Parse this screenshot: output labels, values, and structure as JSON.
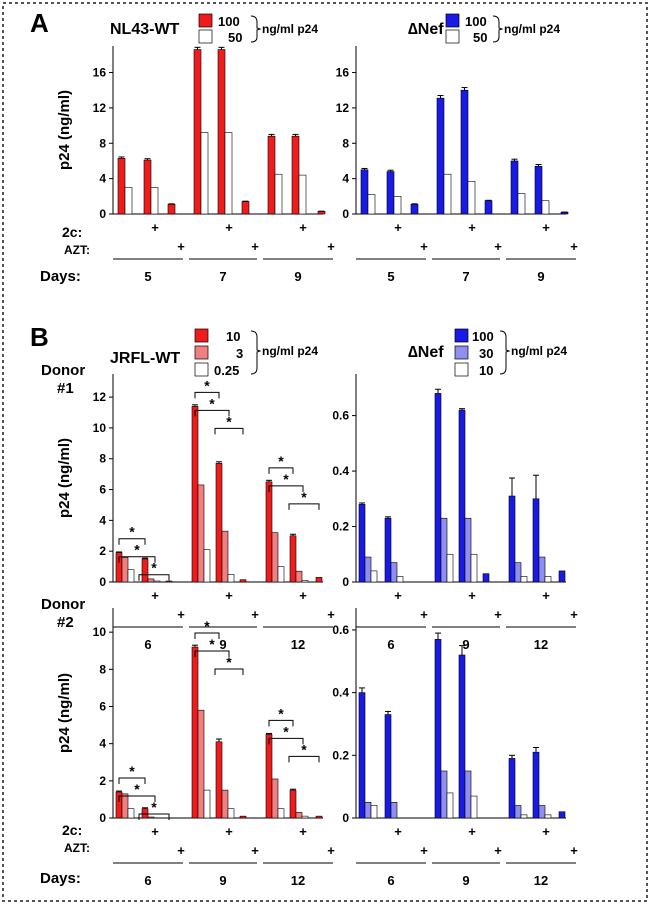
{
  "panel_a": {
    "letter": "A",
    "row_labels": {
      "c2": "2c:",
      "azt": "AZT:",
      "days": "Days:"
    },
    "left": {
      "name": "NL43-WT",
      "legend": [
        {
          "label": "100",
          "color": "#ee1c1c"
        },
        {
          "label": "50",
          "color": "#ffffff"
        }
      ],
      "legend_unit": "ng/ml p24"
    },
    "right": {
      "name": "∆Nef",
      "legend": [
        {
          "label": "100",
          "color": "#1a1ae6"
        },
        {
          "label": "50",
          "color": "#ffffff"
        }
      ],
      "legend_unit": "ng/ml p24"
    }
  },
  "panel_b": {
    "letter": "B",
    "row_labels": {
      "c2": "2c:",
      "azt": "AZT:",
      "days": "Days:"
    },
    "left": {
      "name": "JRFL-WT",
      "legend": [
        {
          "label": "10",
          "color": "#ee1c1c"
        },
        {
          "label": "3",
          "color": "#f08080"
        },
        {
          "label": "0.25",
          "color": "#ffffff"
        }
      ],
      "legend_unit": "ng/ml p24"
    },
    "right": {
      "name": "∆Nef",
      "legend": [
        {
          "label": "100",
          "color": "#1a1ae6"
        },
        {
          "label": "30",
          "color": "#8f8ff0"
        },
        {
          "label": "10",
          "color": "#ffffff"
        }
      ],
      "legend_unit": "ng/ml p24"
    },
    "donor1": "Donor\n#1",
    "donor2": "Donor\n#2"
  },
  "chart_data": [
    {
      "id": "A-left",
      "type": "bar",
      "ylabel": "p24 (ng/ml)",
      "ylim": [
        0,
        19
      ],
      "yticks": [
        0,
        4,
        8,
        12,
        16
      ],
      "days": [
        "5",
        "7",
        "9"
      ],
      "conditions": [
        {
          "c2": "",
          "azt": ""
        },
        {
          "c2": "+",
          "azt": ""
        },
        {
          "c2": "",
          "azt": "+"
        }
      ],
      "series": [
        {
          "name": "100",
          "color": "#ee1c1c",
          "values": [
            6.3,
            6.1,
            1.1,
            18.6,
            18.6,
            1.4,
            8.8,
            8.8,
            0.3
          ]
        },
        {
          "name": "50",
          "color": "#ffffff",
          "values": [
            3.0,
            3.0,
            0,
            9.2,
            9.2,
            0,
            4.5,
            4.4,
            0
          ]
        }
      ],
      "errors": [
        0.15,
        0.15,
        0.05,
        0.25,
        0.25,
        0.05,
        0.2,
        0.2,
        0.02
      ]
    },
    {
      "id": "A-right",
      "type": "bar",
      "ylabel": "",
      "ylim": [
        0,
        19
      ],
      "yticks": [
        0,
        4,
        8,
        12,
        16
      ],
      "days": [
        "5",
        "7",
        "9"
      ],
      "conditions": [
        {
          "c2": "",
          "azt": ""
        },
        {
          "c2": "+",
          "azt": ""
        },
        {
          "c2": "",
          "azt": "+"
        }
      ],
      "series": [
        {
          "name": "100",
          "color": "#1a1ae6",
          "values": [
            5.0,
            4.8,
            1.1,
            13.1,
            14.0,
            1.5,
            6.0,
            5.4,
            0.2
          ]
        },
        {
          "name": "50",
          "color": "#ffffff",
          "values": [
            2.2,
            2.0,
            0,
            4.5,
            3.7,
            0,
            2.3,
            1.5,
            0
          ]
        }
      ],
      "errors": [
        0.15,
        0.15,
        0.05,
        0.3,
        0.3,
        0.05,
        0.2,
        0.2,
        0.02
      ]
    },
    {
      "id": "B-left-donor1",
      "type": "bar",
      "ylabel": "p24 (ng/ml)",
      "ylim": [
        0,
        13.5
      ],
      "yticks": [
        0,
        2,
        4,
        6,
        8,
        10,
        12
      ],
      "days": [
        "6",
        "9",
        "12"
      ],
      "conditions": [
        {
          "c2": "",
          "azt": ""
        },
        {
          "c2": "+",
          "azt": ""
        },
        {
          "c2": "",
          "azt": "+"
        }
      ],
      "series": [
        {
          "name": "10",
          "color": "#ee1c1c",
          "values": [
            1.9,
            1.5,
            0.05,
            11.4,
            7.7,
            0.15,
            6.5,
            3.0,
            0.3
          ]
        },
        {
          "name": "3",
          "color": "#f08080",
          "values": [
            1.6,
            0.2,
            0,
            6.3,
            3.3,
            0,
            3.2,
            0.7,
            0
          ]
        },
        {
          "name": "0.25",
          "color": "#ffffff",
          "values": [
            0.8,
            0.05,
            0,
            2.1,
            0.5,
            0,
            1.0,
            0.1,
            0
          ]
        }
      ],
      "errors": [
        0.05,
        0.05,
        0,
        0.1,
        0.1,
        0,
        0.1,
        0.1,
        0
      ],
      "significance": [
        "*",
        "*",
        "*",
        "*",
        "*",
        "*",
        "*",
        "*",
        "*"
      ]
    },
    {
      "id": "B-right-donor1",
      "type": "bar",
      "ylabel": "",
      "ylim": [
        0,
        0.75
      ],
      "yticks": [
        0,
        0.2,
        0.4,
        0.6
      ],
      "days": [
        "6",
        "9",
        "12"
      ],
      "conditions": [
        {
          "c2": "",
          "azt": ""
        },
        {
          "c2": "+",
          "azt": ""
        },
        {
          "c2": "",
          "azt": "+"
        }
      ],
      "series": [
        {
          "name": "100",
          "color": "#1a1ae6",
          "values": [
            0.28,
            0.23,
            0,
            0.68,
            0.62,
            0.03,
            0.31,
            0.3,
            0.04
          ]
        },
        {
          "name": "30",
          "color": "#8f8ff0",
          "values": [
            0.09,
            0.07,
            0,
            0.23,
            0.23,
            0,
            0.07,
            0.09,
            0
          ]
        },
        {
          "name": "10",
          "color": "#ffffff",
          "values": [
            0.04,
            0.02,
            0,
            0.1,
            0.1,
            0,
            0.02,
            0.02,
            0
          ]
        }
      ],
      "errors": [
        0.005,
        0.005,
        0,
        0.015,
        0.005,
        0,
        0.065,
        0.085,
        0
      ]
    },
    {
      "id": "B-left-donor2",
      "type": "bar",
      "ylabel": "p24 (ng/ml)",
      "ylim": [
        0,
        11.3
      ],
      "yticks": [
        0,
        2,
        4,
        6,
        8,
        10
      ],
      "days": [
        "6",
        "9",
        "12"
      ],
      "conditions": [
        {
          "c2": "",
          "azt": ""
        },
        {
          "c2": "+",
          "azt": ""
        },
        {
          "c2": "",
          "azt": "+"
        }
      ],
      "series": [
        {
          "name": "10",
          "color": "#ee1c1c",
          "values": [
            1.4,
            0.5,
            0,
            9.2,
            4.1,
            0.1,
            4.5,
            1.5,
            0.1
          ]
        },
        {
          "name": "3",
          "color": "#f08080",
          "values": [
            1.3,
            0.05,
            0,
            5.8,
            1.5,
            0,
            2.1,
            0.3,
            0
          ]
        },
        {
          "name": "0.25",
          "color": "#ffffff",
          "values": [
            0.5,
            0,
            0,
            1.5,
            0.5,
            0,
            0.5,
            0.1,
            0
          ]
        }
      ],
      "errors": [
        0.05,
        0.05,
        0,
        0.1,
        0.15,
        0,
        0.05,
        0.05,
        0
      ],
      "significance": [
        "*",
        "*",
        "*",
        "*",
        "*",
        "*",
        "*",
        "*",
        "*"
      ]
    },
    {
      "id": "B-right-donor2",
      "type": "bar",
      "ylabel": "",
      "ylim": [
        0,
        0.67
      ],
      "yticks": [
        0,
        0.2,
        0.4,
        0.6
      ],
      "days": [
        "6",
        "9",
        "12"
      ],
      "conditions": [
        {
          "c2": "",
          "azt": ""
        },
        {
          "c2": "+",
          "azt": ""
        },
        {
          "c2": "",
          "azt": "+"
        }
      ],
      "series": [
        {
          "name": "100",
          "color": "#1a1ae6",
          "values": [
            0.4,
            0.33,
            0,
            0.57,
            0.52,
            0,
            0.19,
            0.21,
            0.02
          ]
        },
        {
          "name": "30",
          "color": "#8f8ff0",
          "values": [
            0.05,
            0.05,
            0,
            0.15,
            0.15,
            0,
            0.04,
            0.04,
            0
          ]
        },
        {
          "name": "10",
          "color": "#ffffff",
          "values": [
            0.04,
            0,
            0,
            0.08,
            0.07,
            0,
            0.01,
            0.01,
            0
          ]
        }
      ],
      "errors": [
        0.015,
        0.01,
        0,
        0.02,
        0.03,
        0,
        0.01,
        0.015,
        0
      ]
    }
  ]
}
